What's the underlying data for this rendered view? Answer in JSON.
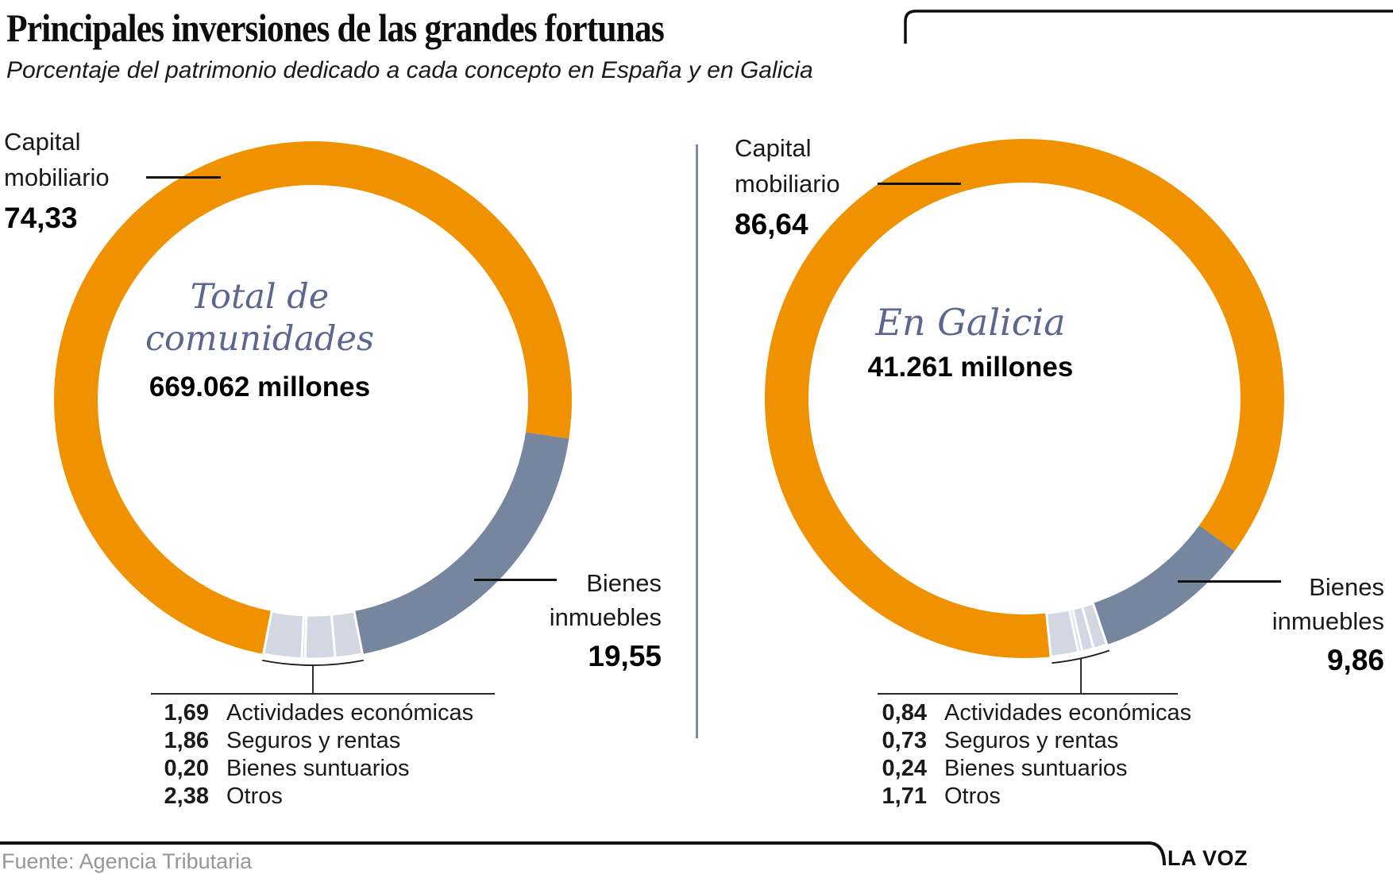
{
  "header": {
    "title": "Principales inversiones de las grandes fortunas",
    "subtitle": "Porcentaje del patrimonio dedicado a cada concepto en España y en Galicia"
  },
  "charts": [
    {
      "capital": {
        "line1": "Capital",
        "line2": "mobiliario",
        "value": "74,33"
      },
      "center": {
        "line1": "Total de",
        "line2": "comunidades",
        "value": "669.062 millones"
      },
      "inmuebles": {
        "line1": "Bienes",
        "line2": "inmuebles",
        "value": "19,55"
      },
      "legend": [
        {
          "value": "1,69",
          "label": "Actividades económicas"
        },
        {
          "value": "1,86",
          "label": "Seguros y rentas"
        },
        {
          "value": "0,20",
          "label": "Bienes suntuarios"
        },
        {
          "value": "2,38",
          "label": "Otros"
        }
      ]
    },
    {
      "capital": {
        "line1": "Capital",
        "line2": "mobiliario",
        "value": "86,64"
      },
      "center": {
        "line1": "En Galicia",
        "line2": "",
        "value": "41.261 millones"
      },
      "inmuebles": {
        "line1": "Bienes",
        "line2": "inmuebles",
        "value": "9,86"
      },
      "legend": [
        {
          "value": "0,84",
          "label": "Actividades económicas"
        },
        {
          "value": "0,73",
          "label": "Seguros y rentas"
        },
        {
          "value": "0,24",
          "label": "Bienes suntuarios"
        },
        {
          "value": "1,71",
          "label": "Otros"
        }
      ]
    }
  ],
  "footer": {
    "source": "Fuente: Agencia Tributaria",
    "brand": "LA VOZ"
  },
  "chart_data": [
    {
      "type": "pie",
      "subtype": "donut",
      "title": "Total de comunidades",
      "total_label": "669.062 millones",
      "categories": [
        "Capital mobiliario",
        "Bienes inmuebles",
        "Actividades económicas",
        "Seguros y rentas",
        "Bienes suntuarios",
        "Otros"
      ],
      "values": [
        74.33,
        19.55,
        1.69,
        1.86,
        0.2,
        2.38
      ],
      "colors": [
        "#F09200",
        "#76869E",
        "#D2D7E3",
        "#D2D7E3",
        "#D2D7E3",
        "#D2D7E3"
      ],
      "separators": [
        false,
        false,
        true,
        true,
        true,
        true
      ],
      "start_angle_deg": 191.0,
      "bracket": {
        "from_deg": 169.0,
        "to_deg": 191.0
      },
      "legend_position": "bottom"
    },
    {
      "type": "pie",
      "subtype": "donut",
      "title": "En Galicia",
      "total_label": "41.261 millones",
      "categories": [
        "Capital mobiliario",
        "Bienes inmuebles",
        "Actividades económicas",
        "Seguros y rentas",
        "Bienes suntuarios",
        "Otros"
      ],
      "values": [
        86.64,
        9.86,
        0.84,
        0.73,
        0.24,
        1.71
      ],
      "colors": [
        "#F09200",
        "#76869E",
        "#D2D7E3",
        "#D2D7E3",
        "#D2D7E3",
        "#D2D7E3"
      ],
      "separators": [
        false,
        false,
        true,
        true,
        true,
        true
      ],
      "start_angle_deg": 174.1,
      "bracket": {
        "from_deg": 161.4,
        "to_deg": 174.1
      },
      "legend_position": "bottom"
    }
  ]
}
